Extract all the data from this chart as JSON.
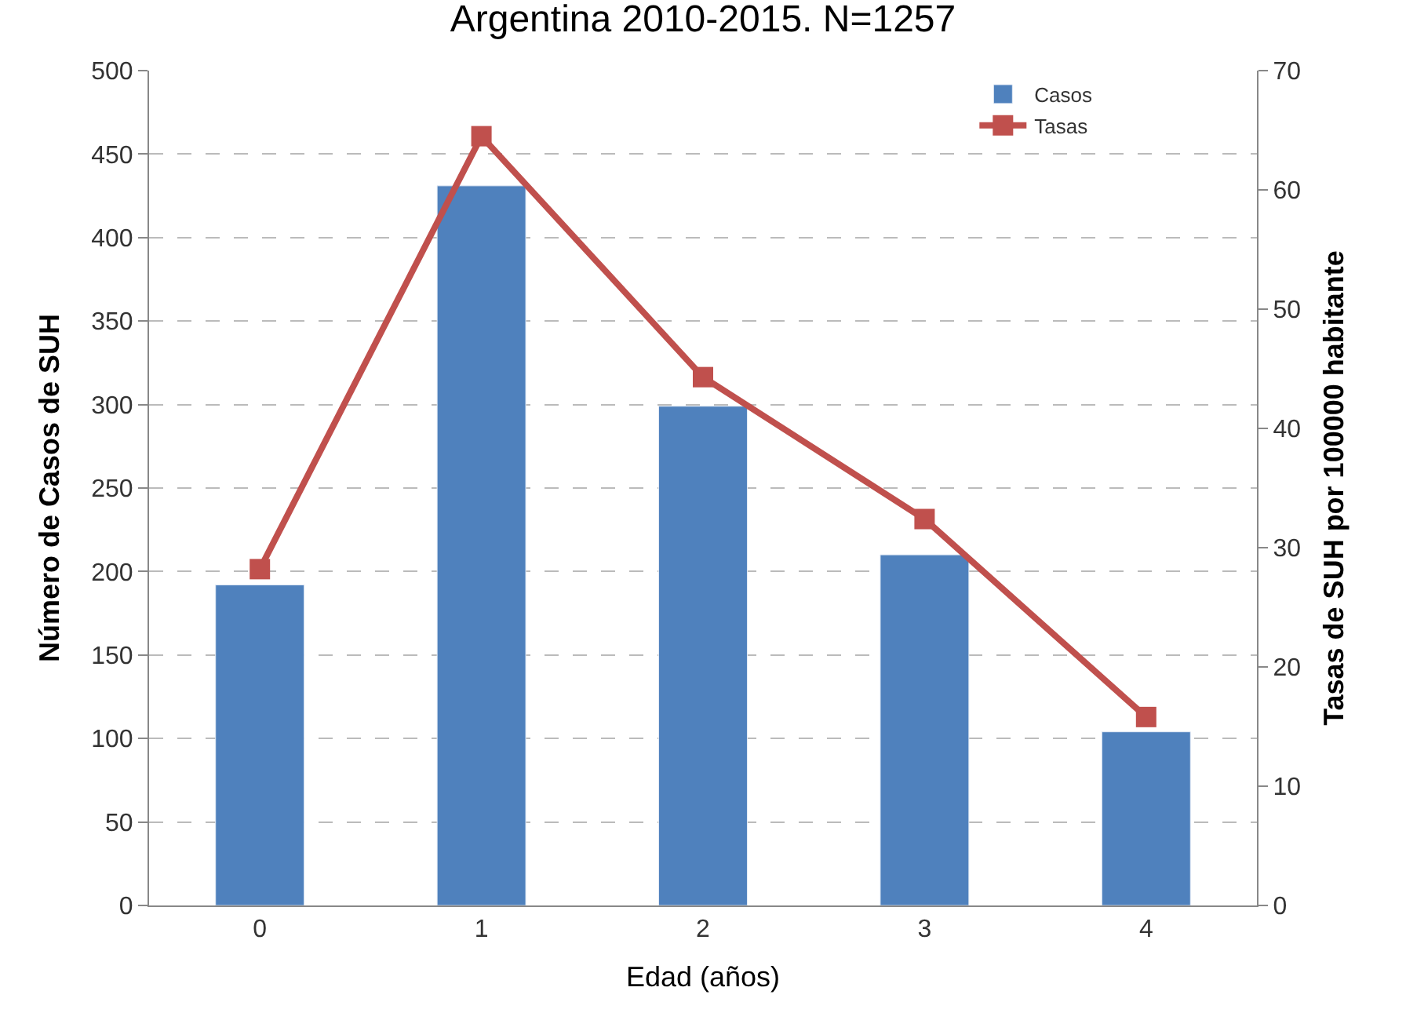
{
  "chart_data": {
    "type": "bar",
    "title": "Argentina 2010-2015. N=1257",
    "xlabel": "Edad (años)",
    "ylabel": "Número de Casos de SUH",
    "y2label": "Tasas de SUH por 100000 habitante",
    "categories": [
      "0",
      "1",
      "2",
      "3",
      "4"
    ],
    "series": [
      {
        "name": "Casos",
        "color": "#4f81bd",
        "values": [
          192,
          431,
          299,
          210,
          104
        ]
      },
      {
        "name": "Tasas",
        "type": "line",
        "axis": "y2",
        "color": "#c0504d",
        "marker": "square",
        "values": [
          28.2,
          64.5,
          44.3,
          32.4,
          15.8
        ]
      }
    ],
    "ylim": [
      0,
      500
    ],
    "yticks": [
      0,
      50,
      100,
      150,
      200,
      250,
      300,
      350,
      400,
      450,
      500
    ],
    "y2lim": [
      0,
      70
    ],
    "y2ticks": [
      0,
      10,
      20,
      30,
      40,
      50,
      60,
      70
    ],
    "grid": "y",
    "legend": "top right"
  }
}
